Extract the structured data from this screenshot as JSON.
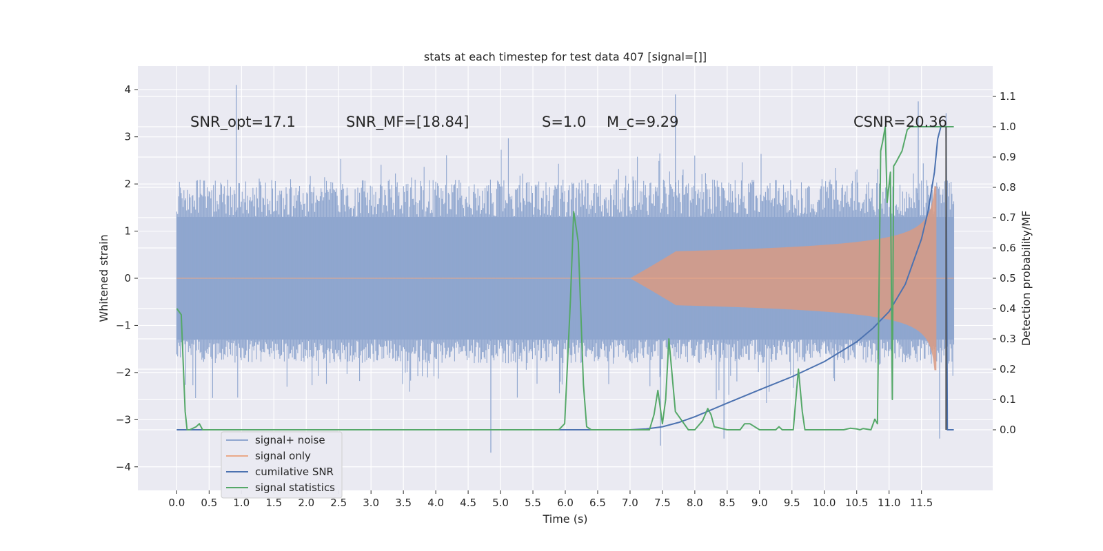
{
  "chart_data": {
    "type": "line",
    "title": "stats at each timestep for test data 407 [signal=[]]",
    "xlabel": "Time (s)",
    "ylabel_left": "Whitened strain",
    "ylabel_right": "Detection probability/MF",
    "xlim": [
      -0.6,
      12.6
    ],
    "ylim_left": [
      -4.5,
      4.5
    ],
    "ylim_right": [
      -0.2,
      1.2
    ],
    "x_ticks": [
      0.0,
      0.5,
      1.0,
      1.5,
      2.0,
      2.5,
      3.0,
      3.5,
      4.0,
      4.5,
      5.0,
      5.5,
      6.0,
      6.5,
      7.0,
      7.5,
      8.0,
      8.5,
      9.0,
      9.5,
      10.0,
      10.5,
      11.0,
      11.5
    ],
    "x_tick_labels": [
      "0.0",
      "0.5",
      "1.0",
      "1.5",
      "2.0",
      "2.5",
      "3.0",
      "3.5",
      "4.0",
      "4.5",
      "5.0",
      "5.5",
      "6.0",
      "6.5",
      "7.0",
      "7.5",
      "8.0",
      "8.5",
      "9.0",
      "9.5",
      "10.0",
      "10.5",
      "11.0",
      "11.5"
    ],
    "y_left_ticks": [
      -4,
      -3,
      -2,
      -1,
      0,
      1,
      2,
      3,
      4
    ],
    "y_left_tick_labels": [
      "−4",
      "−3",
      "−2",
      "−1",
      "0",
      "1",
      "2",
      "3",
      "4"
    ],
    "y_right_ticks": [
      0.0,
      0.1,
      0.2,
      0.3,
      0.4,
      0.5,
      0.6,
      0.7,
      0.8,
      0.9,
      1.0,
      1.1
    ],
    "y_right_tick_labels": [
      "0.0",
      "0.1",
      "0.2",
      "0.3",
      "0.4",
      "0.5",
      "0.6",
      "0.7",
      "0.8",
      "0.9",
      "1.0",
      "1.1"
    ],
    "grid": true,
    "legend_position": "lower-left",
    "annotations": {
      "snr_opt": "SNR_opt=17.1",
      "snr_mf": "SNR_MF=[18.84]",
      "s_value": "S=1.0",
      "mc_value": "M_c=9.29",
      "csnr": "CSNR=20.36"
    },
    "noise_envelope": {
      "x_range": [
        0.0,
        12.0
      ],
      "typical_low": -1.8,
      "typical_high": 2.1,
      "extremes": [
        [
          0.92,
          4.1
        ],
        [
          4.85,
          -3.7
        ],
        [
          7.7,
          3.9
        ],
        [
          7.47,
          -3.55
        ],
        [
          11.45,
          3.75
        ],
        [
          11.88,
          3.5
        ],
        [
          11.78,
          -3.4
        ],
        [
          8.45,
          -3.4
        ]
      ]
    },
    "series": [
      {
        "name": "signal+ noise",
        "color": "#8fa6cf",
        "kind": "noise-band"
      },
      {
        "name": "signal only",
        "color": "#dd8452",
        "kind": "chirp",
        "x_start": 7.0,
        "x_end": 11.73,
        "peak_amplitude": 1.95
      },
      {
        "name": "cumilative SNR",
        "color": "#4c72b0",
        "axis": "right",
        "x": [
          0.0,
          1.0,
          2.0,
          3.0,
          4.0,
          5.0,
          6.0,
          7.0,
          7.25,
          7.5,
          7.75,
          8.0,
          8.5,
          9.0,
          9.5,
          10.0,
          10.5,
          10.75,
          11.0,
          11.25,
          11.5,
          11.6,
          11.7,
          11.75,
          11.8,
          11.85,
          11.88,
          11.9,
          12.0
        ],
        "values": [
          0.0,
          0.0,
          0.0,
          0.0,
          0.0,
          0.0,
          0.0,
          0.0,
          0.003,
          0.01,
          0.024,
          0.043,
          0.088,
          0.132,
          0.175,
          0.225,
          0.29,
          0.335,
          0.39,
          0.48,
          0.63,
          0.72,
          0.85,
          0.96,
          1.0,
          1.0,
          1.0,
          0.0,
          0.0
        ]
      },
      {
        "name": "signal statistics",
        "color": "#55a868",
        "axis": "right",
        "x": [
          0.0,
          0.07,
          0.13,
          0.16,
          0.2,
          0.3,
          0.35,
          0.4,
          0.6,
          1.0,
          2.0,
          3.0,
          4.0,
          5.0,
          5.9,
          5.99,
          6.08,
          6.13,
          6.2,
          6.28,
          6.33,
          6.4,
          7.0,
          7.3,
          7.37,
          7.43,
          7.5,
          7.55,
          7.6,
          7.7,
          7.9,
          8.0,
          8.12,
          8.2,
          8.25,
          8.3,
          8.5,
          8.7,
          8.77,
          8.85,
          9.0,
          9.25,
          9.3,
          9.35,
          9.52,
          9.6,
          9.66,
          9.7,
          9.75,
          10.0,
          10.3,
          10.4,
          10.5,
          10.55,
          10.6,
          10.72,
          10.78,
          10.82,
          10.87,
          10.9,
          10.94,
          10.97,
          11.02,
          11.05,
          11.07,
          11.1,
          11.15,
          11.2,
          11.28,
          11.33,
          11.4,
          11.6,
          11.8,
          11.9,
          12.0
        ],
        "values": [
          0.4,
          0.38,
          0.06,
          0.0,
          0.0,
          0.01,
          0.02,
          0.0,
          0.0,
          0.0,
          0.0,
          0.0,
          0.0,
          0.0,
          0.0,
          0.02,
          0.43,
          0.72,
          0.62,
          0.15,
          0.01,
          0.0,
          0.0,
          0.0,
          0.05,
          0.13,
          0.02,
          0.1,
          0.3,
          0.06,
          0.0,
          0.0,
          0.03,
          0.07,
          0.05,
          0.01,
          0.0,
          0.0,
          0.02,
          0.02,
          0.0,
          0.0,
          0.01,
          0.0,
          0.0,
          0.2,
          0.06,
          0.0,
          0.0,
          0.0,
          0.0,
          0.005,
          0.003,
          0.0,
          0.004,
          0.0,
          0.035,
          0.02,
          0.92,
          0.95,
          1.0,
          0.75,
          0.85,
          0.1,
          0.87,
          0.88,
          0.9,
          0.92,
          0.99,
          1.0,
          1.0,
          1.0,
          1.0,
          1.0,
          1.0
        ]
      }
    ],
    "vertical_line": {
      "x": 11.88,
      "color": "#555555"
    }
  }
}
